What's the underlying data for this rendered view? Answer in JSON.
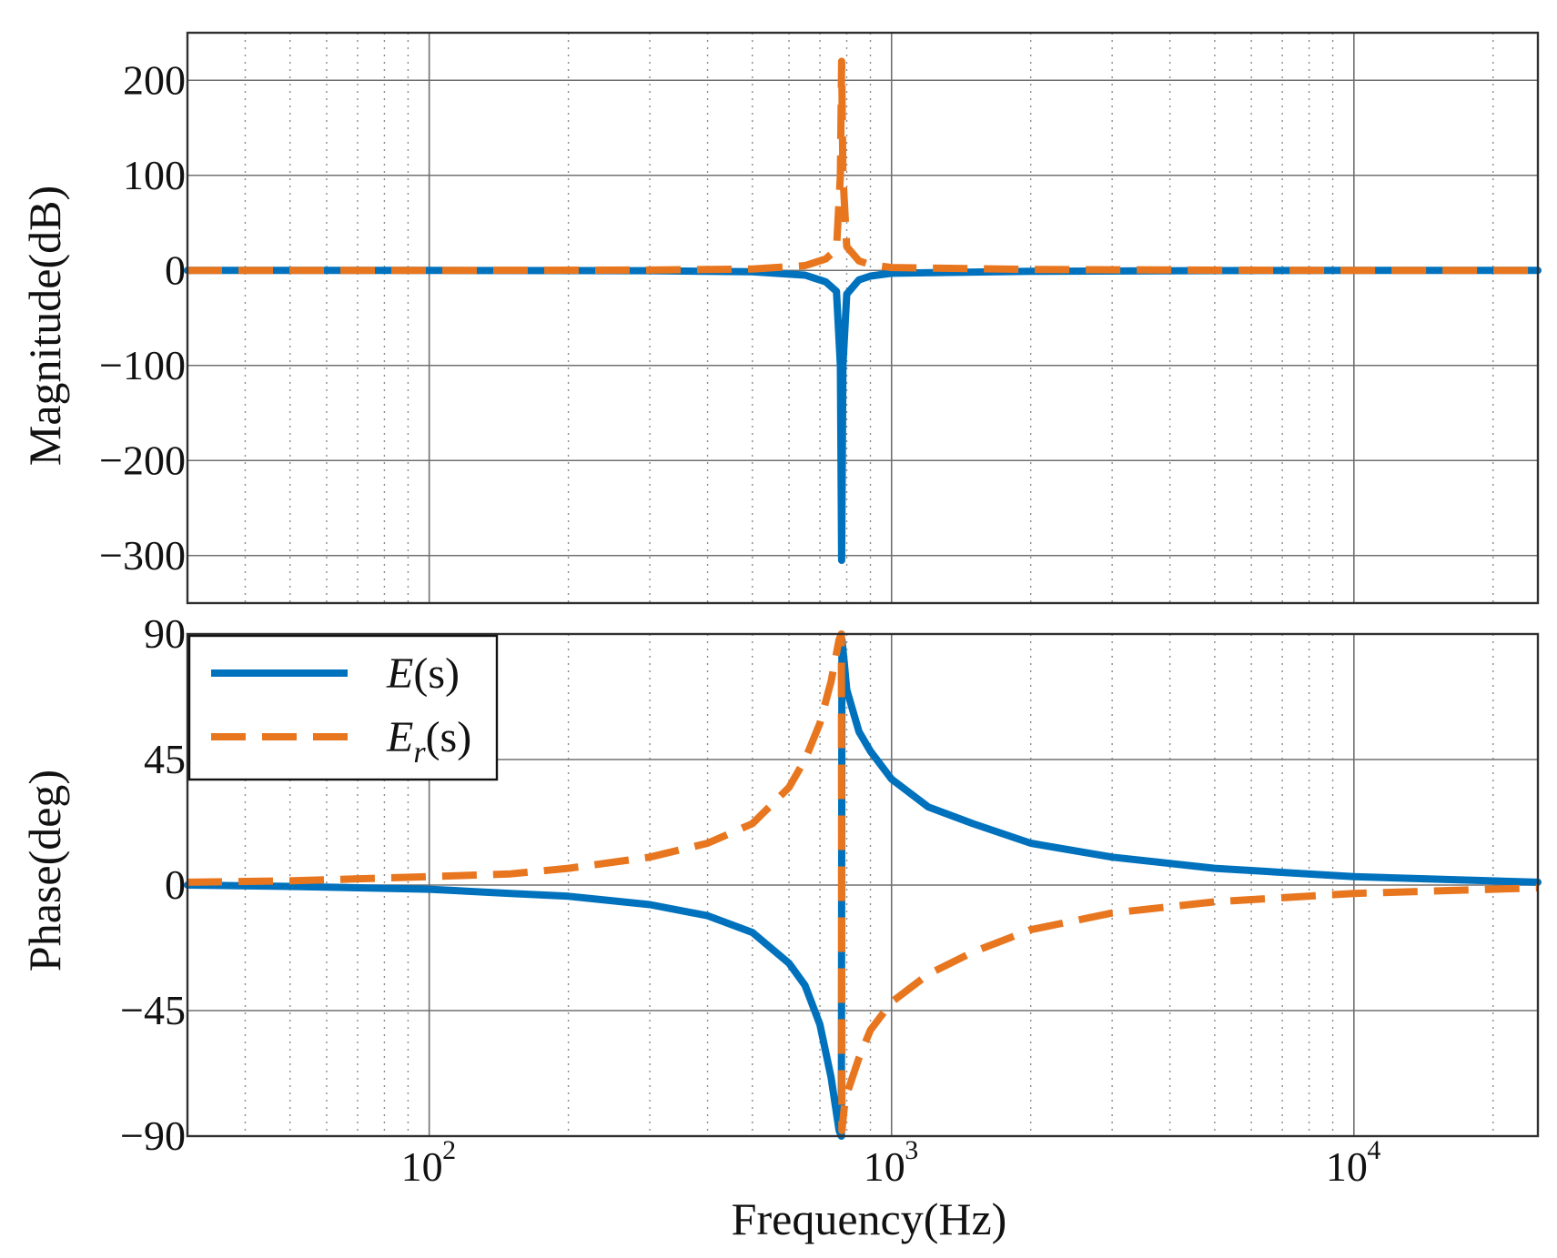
{
  "chart_data": [
    {
      "type": "line",
      "panel": "magnitude",
      "ylabel": "Magnitude(dB)",
      "xscale": "log",
      "xlim": [
        30,
        25000
      ],
      "ylim": [
        -350,
        250
      ],
      "yticks": [
        200,
        100,
        0,
        -100,
        -200,
        -300
      ],
      "ytick_labels": [
        "200",
        "100",
        "0",
        "−100",
        "−200",
        "−300"
      ],
      "grid": true,
      "series": [
        {
          "name": "E(s)",
          "color": "#0072bd",
          "linestyle": "solid",
          "x": [
            30,
            100,
            300,
            500,
            650,
            720,
            760,
            775,
            780,
            785,
            800,
            850,
            900,
            1000,
            2000,
            5000,
            10000,
            25000
          ],
          "y": [
            0,
            0,
            -0.3,
            -1.5,
            -5,
            -12,
            -22,
            -100,
            -305,
            -100,
            -25,
            -10,
            -6,
            -3,
            -1,
            -0.2,
            0,
            0
          ]
        },
        {
          "name": "E_r(s)",
          "color": "#e8761f",
          "linestyle": "dashed",
          "x": [
            30,
            100,
            300,
            500,
            650,
            720,
            760,
            775,
            780,
            785,
            800,
            850,
            900,
            1000,
            2000,
            5000,
            10000,
            25000
          ],
          "y": [
            0,
            0,
            0.3,
            1.5,
            5,
            12,
            22,
            100,
            220,
            100,
            25,
            10,
            6,
            3,
            1,
            0.2,
            0,
            0
          ]
        }
      ]
    },
    {
      "type": "line",
      "panel": "phase",
      "xlabel": "Frequency(Hz)",
      "ylabel": "Phase(deg)",
      "xscale": "log",
      "xlim": [
        30,
        25000
      ],
      "ylim": [
        -90,
        90
      ],
      "yticks": [
        90,
        45,
        0,
        -45,
        -90
      ],
      "ytick_labels": [
        "90",
        "45",
        "0",
        "−45",
        "−90"
      ],
      "xticks": [
        100,
        1000,
        10000
      ],
      "xtick_labels": [
        {
          "base": "10",
          "exp": "2"
        },
        {
          "base": "10",
          "exp": "3"
        },
        {
          "base": "10",
          "exp": "4"
        }
      ],
      "grid": true,
      "legend_position": "top-left",
      "legend": [
        {
          "name": "E",
          "subscript": "",
          "arg": "(s)",
          "color": "#0072bd",
          "linestyle": "solid"
        },
        {
          "name": "E",
          "subscript": "r",
          "arg": "(s)",
          "color": "#e8761f",
          "linestyle": "dashed"
        }
      ],
      "series": [
        {
          "name": "E(s)",
          "color": "#0072bd",
          "linestyle": "solid",
          "x": [
            30,
            50,
            100,
            150,
            200,
            300,
            400,
            500,
            600,
            650,
            700,
            740,
            770,
            779,
            781,
            790,
            800,
            850,
            900,
            1000,
            1200,
            1500,
            2000,
            3000,
            5000,
            10000,
            25000
          ],
          "y": [
            0,
            -0.5,
            -1.5,
            -3,
            -4,
            -7,
            -11,
            -17,
            -28,
            -36,
            -50,
            -69,
            -88,
            -90,
            88,
            80,
            70,
            55,
            48,
            38,
            28,
            22,
            15,
            10,
            6,
            3,
            1
          ]
        },
        {
          "name": "E_r(s)",
          "color": "#e8761f",
          "linestyle": "dashed",
          "x": [
            30,
            50,
            100,
            150,
            200,
            300,
            400,
            500,
            600,
            650,
            700,
            740,
            770,
            779,
            781,
            790,
            800,
            850,
            900,
            1000,
            1200,
            1500,
            2000,
            3000,
            5000,
            10000,
            25000
          ],
          "y": [
            1,
            1.5,
            3,
            4,
            6,
            10,
            15,
            22,
            35,
            45,
            58,
            73,
            88,
            90,
            -88,
            -80,
            -75,
            -62,
            -52,
            -42,
            -32,
            -24,
            -16,
            -10,
            -6,
            -3,
            -1
          ]
        }
      ]
    }
  ]
}
